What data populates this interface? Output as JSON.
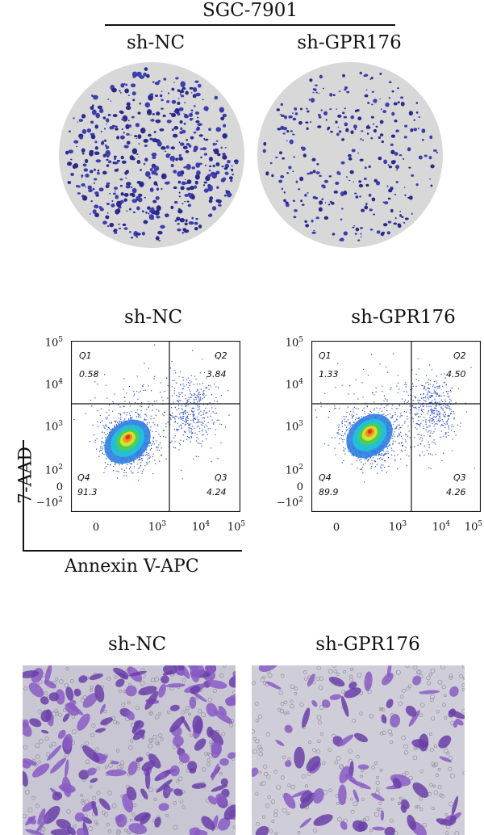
{
  "colony_panel": {
    "cell_line": "SGC-7901",
    "left_label": "sh-NC",
    "right_label": "sh-GPR176"
  },
  "flow_panel": {
    "left": {
      "title": "sh-NC",
      "q1": {
        "label": "Q1",
        "value": "0.58"
      },
      "q2": {
        "label": "Q2",
        "value": "3.84"
      },
      "q3": {
        "label": "Q3",
        "value": "4.24"
      },
      "q4": {
        "label": "Q4",
        "value": "91.3"
      }
    },
    "right": {
      "title": "sh-GPR176",
      "q1": {
        "label": "Q1",
        "value": "1.33"
      },
      "q2": {
        "label": "Q2",
        "value": "4.50"
      },
      "q3": {
        "label": "Q3",
        "value": "4.26"
      },
      "q4": {
        "label": "Q4",
        "value": "89.9"
      }
    },
    "y_axis_label": "7-AAD",
    "x_axis_label": "Annexin V-APC",
    "y_ticks": [
      "10",
      "10",
      "10",
      "10",
      "0",
      "−10"
    ],
    "y_tick_exponents": [
      "5",
      "4",
      "3",
      "2",
      "",
      "2"
    ],
    "x_ticks": [
      "0",
      "10",
      "10",
      "10"
    ],
    "x_tick_exponents": [
      "",
      "3",
      "4",
      "5"
    ]
  },
  "transwell_panel": {
    "left_label": "sh-NC",
    "right_label": "sh-GPR176"
  }
}
